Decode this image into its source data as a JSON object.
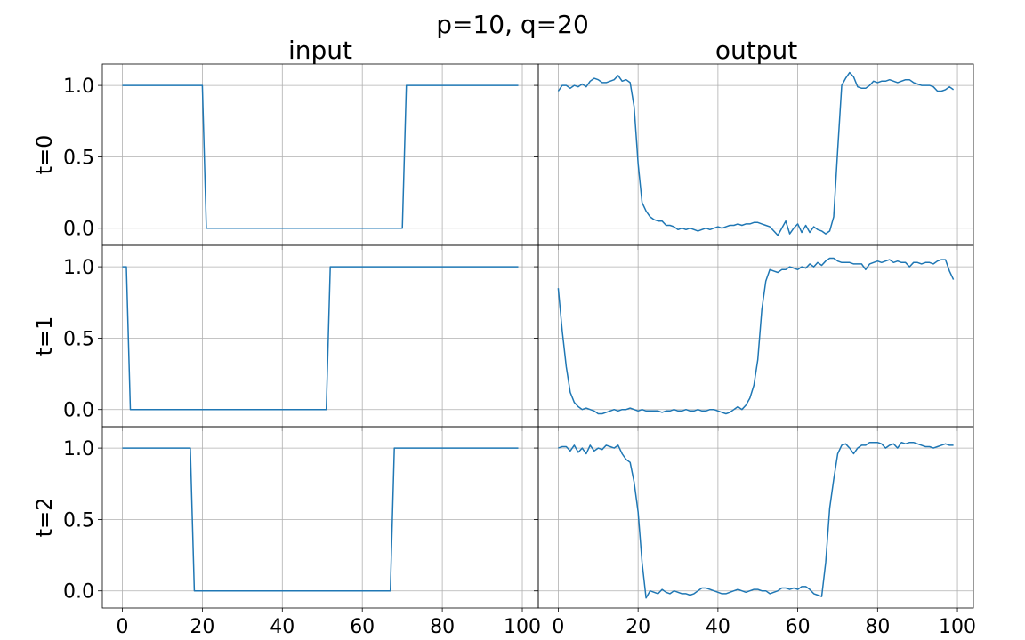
{
  "title": "p=10, q=20",
  "column_titles": [
    "input",
    "output"
  ],
  "row_labels": [
    "t=0",
    "t=1",
    "t=2"
  ],
  "x_tick_labels": [
    "0",
    "20",
    "40",
    "60",
    "80",
    "100"
  ],
  "y_tick_labels": [
    "0.0",
    "0.5",
    "1.0"
  ],
  "colors": {
    "line": "#1f77b4",
    "grid": "#b0b0b0",
    "axes": "#000000"
  },
  "chart_data": {
    "type": "line",
    "layout": "3 rows x 2 columns, shared axes",
    "grid": true,
    "xlim": [
      -5,
      104
    ],
    "ylim": [
      -0.12,
      1.15
    ],
    "x_ticks": [
      0,
      20,
      40,
      60,
      80,
      100
    ],
    "y_ticks": [
      0.0,
      0.5,
      1.0
    ],
    "panels": [
      {
        "row": "t=0",
        "column": "input",
        "x": [
          0,
          20,
          21,
          70,
          71,
          99
        ],
        "y": [
          1,
          1,
          0,
          0,
          1,
          1
        ]
      },
      {
        "row": "t=0",
        "column": "output",
        "x": [
          0,
          1,
          2,
          3,
          4,
          5,
          6,
          7,
          8,
          9,
          10,
          11,
          12,
          13,
          14,
          15,
          16,
          17,
          18,
          19,
          20,
          21,
          22,
          23,
          24,
          25,
          26,
          27,
          28,
          29,
          30,
          31,
          32,
          33,
          34,
          35,
          36,
          37,
          38,
          39,
          40,
          41,
          42,
          43,
          44,
          45,
          46,
          47,
          48,
          49,
          50,
          51,
          52,
          53,
          54,
          55,
          56,
          57,
          58,
          59,
          60,
          61,
          62,
          63,
          64,
          65,
          66,
          67,
          68,
          69,
          70,
          71,
          72,
          73,
          74,
          75,
          76,
          77,
          78,
          79,
          80,
          81,
          82,
          83,
          84,
          85,
          86,
          87,
          88,
          89,
          90,
          91,
          92,
          93,
          94,
          95,
          96,
          97,
          98,
          99
        ],
        "y": [
          0.96,
          1.0,
          1.0,
          0.98,
          1.0,
          0.99,
          1.01,
          0.99,
          1.03,
          1.05,
          1.04,
          1.02,
          1.02,
          1.03,
          1.04,
          1.07,
          1.03,
          1.04,
          1.02,
          0.85,
          0.45,
          0.18,
          0.12,
          0.08,
          0.06,
          0.05,
          0.05,
          0.02,
          0.02,
          0.01,
          -0.01,
          0.0,
          -0.01,
          0.0,
          -0.01,
          -0.02,
          -0.01,
          0.0,
          -0.01,
          0.0,
          0.01,
          0.0,
          0.01,
          0.02,
          0.02,
          0.03,
          0.02,
          0.03,
          0.03,
          0.04,
          0.04,
          0.03,
          0.02,
          0.01,
          -0.02,
          -0.05,
          0.0,
          0.05,
          -0.04,
          0.0,
          0.03,
          -0.03,
          0.02,
          -0.03,
          0.01,
          -0.01,
          -0.02,
          -0.04,
          -0.02,
          0.08,
          0.55,
          1.0,
          1.05,
          1.09,
          1.06,
          0.99,
          0.98,
          0.98,
          1.0,
          1.03,
          1.02,
          1.03,
          1.03,
          1.04,
          1.03,
          1.02,
          1.03,
          1.04,
          1.04,
          1.02,
          1.01,
          1.0,
          1.0,
          1.0,
          0.99,
          0.96,
          0.96,
          0.97,
          0.99,
          0.97
        ]
      },
      {
        "row": "t=1",
        "column": "input",
        "x": [
          0,
          1,
          2,
          51,
          52,
          99
        ],
        "y": [
          1,
          1,
          0,
          0,
          1,
          1
        ]
      },
      {
        "row": "t=1",
        "column": "output",
        "x": [
          0,
          1,
          2,
          3,
          4,
          5,
          6,
          7,
          8,
          9,
          10,
          11,
          12,
          13,
          14,
          15,
          16,
          17,
          18,
          19,
          20,
          21,
          22,
          23,
          24,
          25,
          26,
          27,
          28,
          29,
          30,
          31,
          32,
          33,
          34,
          35,
          36,
          37,
          38,
          39,
          40,
          41,
          42,
          43,
          44,
          45,
          46,
          47,
          48,
          49,
          50,
          51,
          52,
          53,
          54,
          55,
          56,
          57,
          58,
          59,
          60,
          61,
          62,
          63,
          64,
          65,
          66,
          67,
          68,
          69,
          70,
          71,
          72,
          73,
          74,
          75,
          76,
          77,
          78,
          79,
          80,
          81,
          82,
          83,
          84,
          85,
          86,
          87,
          88,
          89,
          90,
          91,
          92,
          93,
          94,
          95,
          96,
          97,
          98,
          99
        ],
        "y": [
          0.85,
          0.55,
          0.3,
          0.12,
          0.05,
          0.02,
          0.0,
          0.01,
          0.0,
          -0.01,
          -0.03,
          -0.03,
          -0.02,
          -0.01,
          0.0,
          -0.01,
          0.0,
          0.0,
          0.01,
          0.0,
          -0.01,
          0.0,
          -0.01,
          -0.01,
          -0.01,
          -0.01,
          -0.02,
          -0.01,
          -0.01,
          0.0,
          -0.01,
          -0.01,
          0.0,
          -0.01,
          -0.01,
          0.0,
          -0.01,
          -0.01,
          0.0,
          0.0,
          -0.01,
          -0.02,
          -0.03,
          -0.02,
          0.0,
          0.02,
          0.0,
          0.03,
          0.08,
          0.17,
          0.35,
          0.7,
          0.9,
          0.98,
          0.97,
          0.96,
          0.98,
          0.98,
          1.0,
          0.99,
          0.98,
          1.0,
          0.99,
          1.02,
          1.0,
          1.03,
          1.01,
          1.04,
          1.06,
          1.06,
          1.04,
          1.03,
          1.03,
          1.03,
          1.02,
          1.02,
          1.02,
          0.98,
          1.02,
          1.03,
          1.04,
          1.03,
          1.04,
          1.05,
          1.03,
          1.04,
          1.03,
          1.03,
          1.0,
          1.03,
          1.03,
          1.02,
          1.03,
          1.03,
          1.02,
          1.04,
          1.05,
          1.05,
          0.97,
          0.91
        ]
      },
      {
        "row": "t=2",
        "column": "input",
        "x": [
          0,
          17,
          18,
          67,
          68,
          99
        ],
        "y": [
          1,
          1,
          0,
          0,
          1,
          1
        ]
      },
      {
        "row": "t=2",
        "column": "output",
        "x": [
          0,
          1,
          2,
          3,
          4,
          5,
          6,
          7,
          8,
          9,
          10,
          11,
          12,
          13,
          14,
          15,
          16,
          17,
          18,
          19,
          20,
          21,
          22,
          23,
          24,
          25,
          26,
          27,
          28,
          29,
          30,
          31,
          32,
          33,
          34,
          35,
          36,
          37,
          38,
          39,
          40,
          41,
          42,
          43,
          44,
          45,
          46,
          47,
          48,
          49,
          50,
          51,
          52,
          53,
          54,
          55,
          56,
          57,
          58,
          59,
          60,
          61,
          62,
          63,
          64,
          65,
          66,
          67,
          68,
          69,
          70,
          71,
          72,
          73,
          74,
          75,
          76,
          77,
          78,
          79,
          80,
          81,
          82,
          83,
          84,
          85,
          86,
          87,
          88,
          89,
          90,
          91,
          92,
          93,
          94,
          95,
          96,
          97,
          98,
          99
        ],
        "y": [
          1.0,
          1.01,
          1.01,
          0.98,
          1.02,
          0.97,
          1.0,
          0.96,
          1.02,
          0.98,
          1.0,
          0.99,
          1.02,
          1.01,
          1.0,
          1.02,
          0.96,
          0.92,
          0.9,
          0.76,
          0.55,
          0.2,
          -0.05,
          0.0,
          -0.01,
          -0.02,
          0.01,
          -0.01,
          -0.02,
          0.0,
          -0.01,
          -0.02,
          -0.02,
          -0.03,
          -0.02,
          0.0,
          0.02,
          0.02,
          0.01,
          0.0,
          -0.01,
          -0.02,
          -0.02,
          -0.01,
          0.0,
          0.01,
          0.0,
          -0.01,
          0.0,
          0.01,
          0.01,
          0.0,
          0.0,
          -0.02,
          -0.01,
          0.0,
          0.02,
          0.02,
          0.01,
          0.02,
          0.01,
          0.03,
          0.03,
          0.01,
          -0.02,
          -0.03,
          -0.04,
          0.2,
          0.58,
          0.78,
          0.96,
          1.02,
          1.03,
          1.0,
          0.96,
          1.0,
          1.02,
          1.02,
          1.04,
          1.04,
          1.04,
          1.03,
          1.0,
          1.02,
          1.03,
          1.0,
          1.04,
          1.03,
          1.04,
          1.04,
          1.03,
          1.02,
          1.01,
          1.01,
          1.0,
          1.01,
          1.02,
          1.03,
          1.02,
          1.02
        ]
      }
    ]
  }
}
